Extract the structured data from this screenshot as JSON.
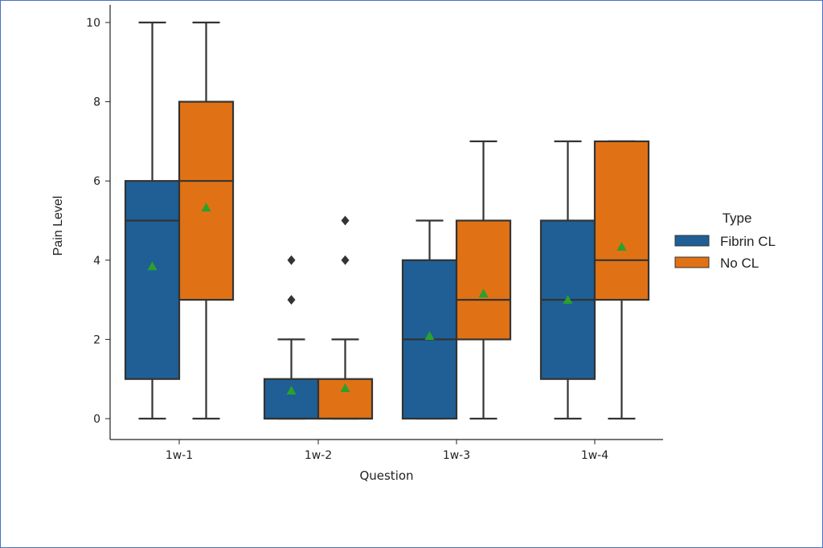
{
  "chart_data": {
    "type": "box",
    "xlabel": "Question",
    "ylabel": "Pain Level",
    "ylim": [
      -0.5,
      10.5
    ],
    "yticks": [
      0,
      2,
      4,
      6,
      8,
      10
    ],
    "categories": [
      "1w-1",
      "1w-2",
      "1w-3",
      "1w-4"
    ],
    "legend": {
      "title": "Type",
      "placement": "right"
    },
    "series": [
      {
        "name": "Fibrin CL",
        "color": "#1f5f95",
        "boxes": [
          {
            "whislo": 0,
            "q1": 1,
            "med": 5,
            "q3": 6,
            "whishi": 10,
            "mean": 3.85,
            "fliers": []
          },
          {
            "whislo": 0,
            "q1": 0,
            "med": 0,
            "q3": 1,
            "whishi": 2,
            "mean": 0.71,
            "fliers": [
              3,
              4
            ]
          },
          {
            "whislo": 0,
            "q1": 0,
            "med": 2,
            "q3": 4,
            "whishi": 5,
            "mean": 2.09,
            "fliers": []
          },
          {
            "whislo": 0,
            "q1": 1,
            "med": 3,
            "q3": 5,
            "whishi": 7,
            "mean": 3.0,
            "fliers": []
          }
        ]
      },
      {
        "name": "No CL",
        "color": "#e07215",
        "boxes": [
          {
            "whislo": 0,
            "q1": 3,
            "med": 6,
            "q3": 8,
            "whishi": 10,
            "mean": 5.33,
            "fliers": []
          },
          {
            "whislo": 0,
            "q1": 0,
            "med": 0,
            "q3": 1,
            "whishi": 2,
            "mean": 0.77,
            "fliers": [
              4,
              5
            ]
          },
          {
            "whislo": 0,
            "q1": 2,
            "med": 3,
            "q3": 5,
            "whishi": 7,
            "mean": 3.16,
            "fliers": []
          },
          {
            "whislo": 0,
            "q1": 3,
            "med": 4,
            "q3": 7,
            "whishi": 7,
            "mean": 4.34,
            "fliers": []
          }
        ]
      }
    ],
    "mean_marker_color": "#2ca02c",
    "grid": false
  }
}
